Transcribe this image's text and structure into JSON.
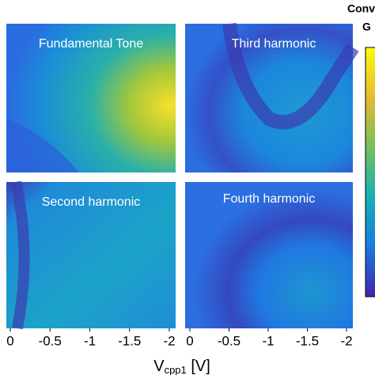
{
  "chart_data": {
    "type": "heatmap",
    "panels": [
      {
        "title": "Fundamental Tone"
      },
      {
        "title": "Third harmonic"
      },
      {
        "title": "Second harmonic"
      },
      {
        "title": "Fourth harmonic"
      }
    ],
    "xlim": [
      0,
      -2
    ],
    "xticks": [
      0,
      -0.5,
      -1,
      -1.5,
      -2
    ],
    "xlabel": "V",
    "xlabel_sub": "cpp1",
    "xlabel_unit": " [V]",
    "colorbar_label": [
      "Conv",
      "G"
    ]
  }
}
